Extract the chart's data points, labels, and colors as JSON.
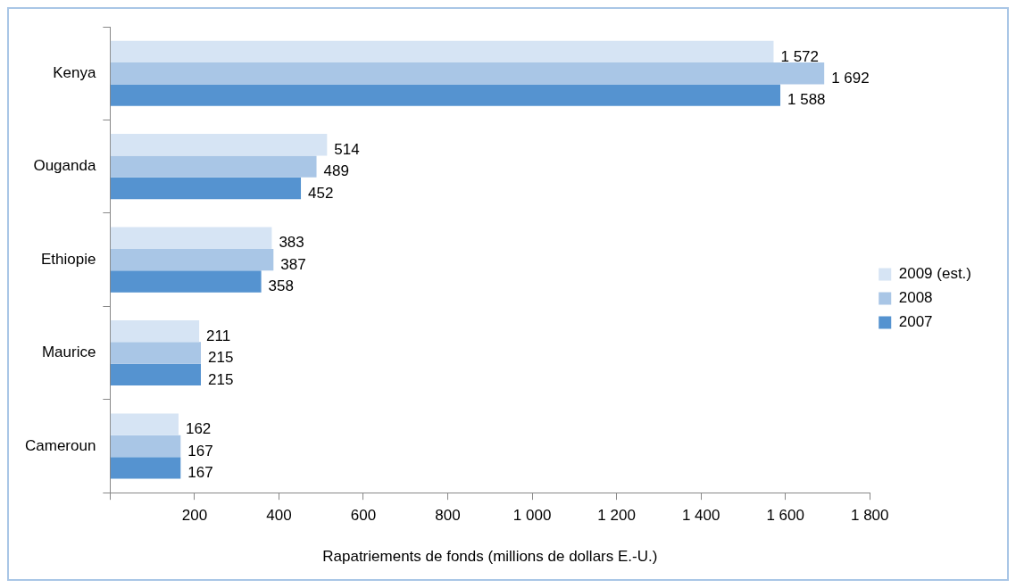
{
  "chart_data": {
    "type": "bar",
    "orientation": "horizontal",
    "xlabel": "Rapatriements de fonds (millions de dollars E.-U.)",
    "categories": [
      "Kenya",
      "Ouganda",
      "Ethiopie",
      "Maurice",
      "Cameroun"
    ],
    "series": [
      {
        "name": "2009 (est.)",
        "color": "#d6e4f4",
        "values": [
          1572,
          514,
          383,
          211,
          162
        ],
        "value_labels": [
          "1 572",
          "514",
          "383",
          "211",
          "162"
        ]
      },
      {
        "name": "2008",
        "color": "#a9c6e6",
        "values": [
          1692,
          489,
          387,
          215,
          167
        ],
        "value_labels": [
          "1 692",
          "489",
          "387",
          "215",
          "167"
        ]
      },
      {
        "name": "2007",
        "color": "#5593d0",
        "values": [
          1588,
          452,
          358,
          215,
          167
        ],
        "value_labels": [
          "1 588",
          "452",
          "358",
          "215",
          "167"
        ]
      }
    ],
    "xlim": [
      0,
      1800
    ],
    "xticks": [
      {
        "value": 0,
        "label": null
      },
      200,
      400,
      600,
      800,
      {
        "value": 1000,
        "label": "1 000"
      },
      {
        "value": 1200,
        "label": "1 200"
      },
      {
        "value": 1400,
        "label": "1 400"
      },
      {
        "value": 1600,
        "label": "1 600"
      },
      {
        "value": 1800,
        "label": "1 800"
      }
    ],
    "grid": false,
    "legend": "right"
  }
}
